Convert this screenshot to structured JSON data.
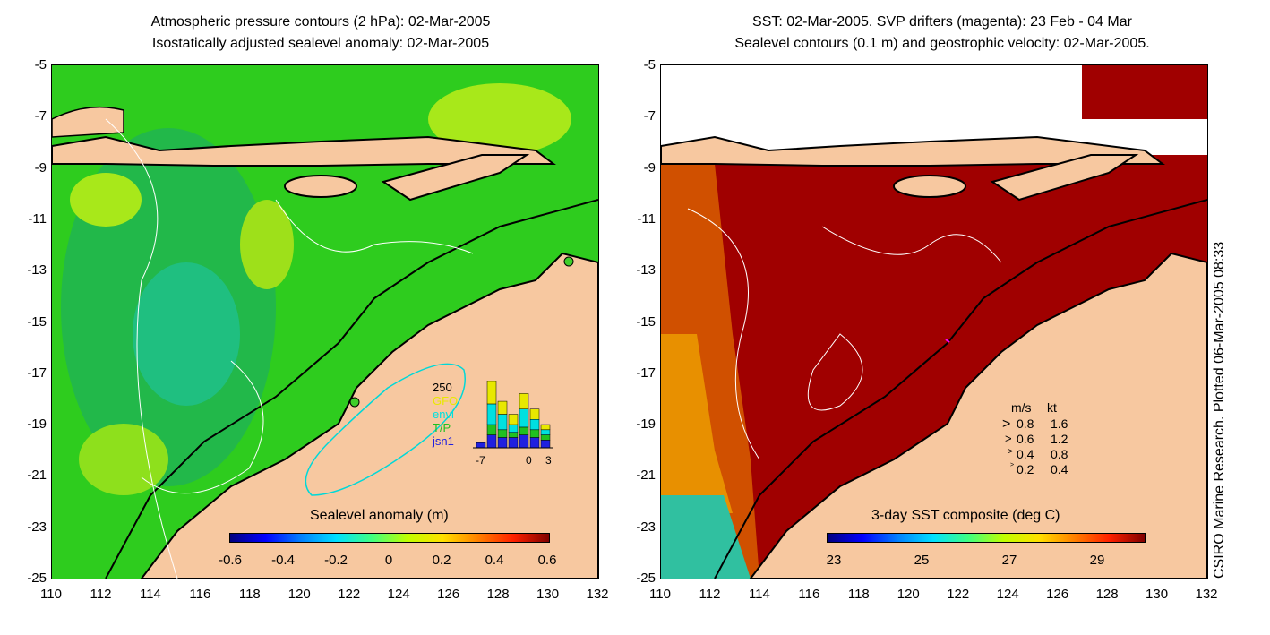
{
  "left_panel": {
    "title_line1": "Atmospheric pressure contours (2 hPa): 02-Mar-2005",
    "title_line2": "Isostatically adjusted sealevel anomaly: 02-Mar-2005",
    "y_ticks": [
      "-5",
      "-7",
      "-9",
      "-11",
      "-13",
      "-15",
      "-17",
      "-19",
      "-21",
      "-23",
      "-25"
    ],
    "x_ticks": [
      "110",
      "112",
      "114",
      "116",
      "118",
      "120",
      "122",
      "124",
      "126",
      "128",
      "130",
      "132"
    ],
    "colorbar_label": "Sealevel anomaly (m)",
    "colorbar_ticks": [
      "-0.6",
      "-0.4",
      "-0.2",
      "0",
      "0.2",
      "0.4",
      "0.6"
    ],
    "inset": {
      "y_label": "250",
      "x_ticks": [
        "-7",
        "0",
        "3"
      ],
      "legend": [
        {
          "label": "GFO",
          "color": "#e8e800"
        },
        {
          "label": "envi",
          "color": "#00e0e0"
        },
        {
          "label": "T/P",
          "color": "#20c020"
        },
        {
          "label": "jsn1",
          "color": "#2020e0"
        }
      ],
      "bars": [
        {
          "yellow": 0,
          "cyan": 0,
          "green": 0,
          "blue": 10
        },
        {
          "yellow": 45,
          "cyan": 40,
          "green": 20,
          "blue": 25
        },
        {
          "yellow": 25,
          "cyan": 30,
          "green": 15,
          "blue": 20
        },
        {
          "yellow": 20,
          "cyan": 15,
          "green": 10,
          "blue": 20
        },
        {
          "yellow": 30,
          "cyan": 35,
          "green": 15,
          "blue": 25
        },
        {
          "yellow": 20,
          "cyan": 20,
          "green": 15,
          "blue": 20
        },
        {
          "yellow": 10,
          "cyan": 10,
          "green": 10,
          "blue": 15
        }
      ]
    }
  },
  "right_panel": {
    "title_line1": "SST: 02-Mar-2005. SVP drifters (magenta): 23 Feb - 04 Mar",
    "title_line2": "Sealevel contours (0.1 m) and geostrophic velocity: 02-Mar-2005.",
    "y_ticks": [
      "-5",
      "-7",
      "-9",
      "-11",
      "-13",
      "-15",
      "-17",
      "-19",
      "-21",
      "-23",
      "-25"
    ],
    "x_ticks": [
      "110",
      "112",
      "114",
      "116",
      "118",
      "120",
      "122",
      "124",
      "126",
      "128",
      "130",
      "132"
    ],
    "colorbar_label": "3-day SST composite (deg C)",
    "colorbar_ticks": [
      "23",
      "25",
      "27",
      "29"
    ],
    "velocity_legend": {
      "header_ms": "m/s",
      "header_kt": "kt",
      "rows": [
        {
          "ms": "0.8",
          "kt": "1.6"
        },
        {
          "ms": "0.6",
          "kt": "1.2"
        },
        {
          "ms": "0.4",
          "kt": "0.8"
        },
        {
          "ms": "0.2",
          "kt": "0.4"
        }
      ]
    }
  },
  "side_note": "CSIRO Marine Research. Plotted 06-Mar-2005 08:33",
  "colors": {
    "land": "#f7c8a0",
    "ocean_green": "#2ecc1e",
    "ocean_light": "#8ee01c",
    "ocean_cyan": "#2ec88a",
    "sst_dark": "#a00000",
    "sst_orange": "#e07800"
  }
}
